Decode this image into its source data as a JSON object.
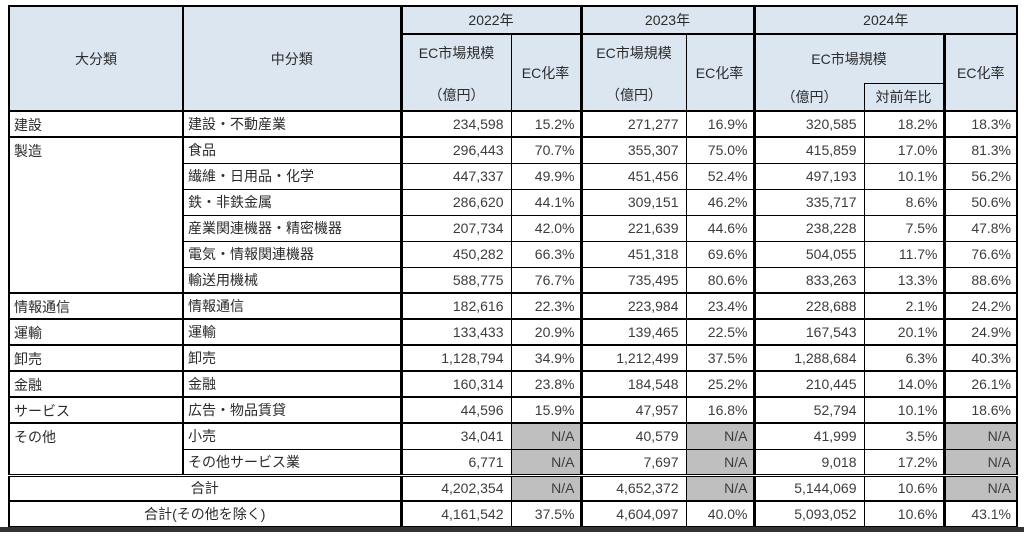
{
  "colors": {
    "header_bg": "#dce6f1",
    "na_bg": "#bfbfbf",
    "border": "#000000",
    "bottom_bar": "#333333"
  },
  "table": {
    "header": {
      "major": "大分類",
      "middle": "中分類",
      "years": [
        "2022年",
        "2023年",
        "2024年"
      ],
      "market_size": "EC市場規模",
      "unit": "（億円）",
      "ec_rate": "EC化率",
      "yoy": "対前年比"
    },
    "rows": [
      {
        "major": "建設",
        "rowspan": 1,
        "mid": "建設・不動産業",
        "cells": [
          "234,598",
          "15.2%",
          "271,277",
          "16.9%",
          "320,585",
          "18.2%",
          "18.3%"
        ]
      },
      {
        "major": "製造",
        "rowspan": 6,
        "mid": "食品",
        "cells": [
          "296,443",
          "70.7%",
          "355,307",
          "75.0%",
          "415,859",
          "17.0%",
          "81.3%"
        ]
      },
      {
        "mid": "繊維・日用品・化学",
        "cells": [
          "447,337",
          "49.9%",
          "451,456",
          "52.4%",
          "497,193",
          "10.1%",
          "56.2%"
        ]
      },
      {
        "mid": "鉄・非鉄金属",
        "cells": [
          "286,620",
          "44.1%",
          "309,151",
          "46.2%",
          "335,717",
          "8.6%",
          "50.6%"
        ]
      },
      {
        "mid": "産業関連機器・精密機器",
        "cells": [
          "207,734",
          "42.0%",
          "221,639",
          "44.6%",
          "238,228",
          "7.5%",
          "47.8%"
        ]
      },
      {
        "mid": "電気・情報関連機器",
        "cells": [
          "450,282",
          "66.3%",
          "451,318",
          "69.6%",
          "504,055",
          "11.7%",
          "76.6%"
        ]
      },
      {
        "mid": "輸送用機械",
        "cells": [
          "588,775",
          "76.7%",
          "735,495",
          "80.6%",
          "833,263",
          "13.3%",
          "88.6%"
        ]
      },
      {
        "major": "情報通信",
        "rowspan": 1,
        "mid": "情報通信",
        "cells": [
          "182,616",
          "22.3%",
          "223,984",
          "23.4%",
          "228,688",
          "2.1%",
          "24.2%"
        ]
      },
      {
        "major": "運輸",
        "rowspan": 1,
        "mid": "運輸",
        "cells": [
          "133,433",
          "20.9%",
          "139,465",
          "22.5%",
          "167,543",
          "20.1%",
          "24.9%"
        ]
      },
      {
        "major": "卸売",
        "rowspan": 1,
        "mid": "卸売",
        "cells": [
          "1,128,794",
          "34.9%",
          "1,212,499",
          "37.5%",
          "1,288,684",
          "6.3%",
          "40.3%"
        ]
      },
      {
        "major": "金融",
        "rowspan": 1,
        "mid": "金融",
        "cells": [
          "160,314",
          "23.8%",
          "184,548",
          "25.2%",
          "210,445",
          "14.0%",
          "26.1%"
        ]
      },
      {
        "major": "サービス",
        "rowspan": 1,
        "mid": "広告・物品賃貸",
        "cells": [
          "44,596",
          "15.9%",
          "47,957",
          "16.8%",
          "52,794",
          "10.1%",
          "18.6%"
        ]
      },
      {
        "major": "その他",
        "rowspan": 2,
        "mid": "小売",
        "cells": [
          "34,041",
          "N/A",
          "40,579",
          "N/A",
          "41,999",
          "3.5%",
          "N/A"
        ]
      },
      {
        "mid": "その他サービス業",
        "cells": [
          "6,771",
          "N/A",
          "7,697",
          "N/A",
          "9,018",
          "17.2%",
          "N/A"
        ]
      }
    ],
    "totals": [
      {
        "label": "合計",
        "cells": [
          "4,202,354",
          "N/A",
          "4,652,372",
          "N/A",
          "5,144,069",
          "10.6%",
          "N/A"
        ]
      },
      {
        "label": "合計(その他を除く)",
        "cells": [
          "4,161,542",
          "37.5%",
          "4,604,097",
          "40.0%",
          "5,093,052",
          "10.6%",
          "43.1%"
        ]
      }
    ]
  }
}
